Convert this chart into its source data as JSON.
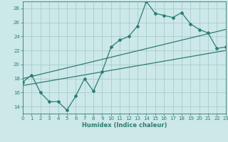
{
  "xlabel": "Humidex (Indice chaleur)",
  "xlim": [
    0,
    23
  ],
  "ylim": [
    13,
    29
  ],
  "yticks": [
    14,
    16,
    18,
    20,
    22,
    24,
    26,
    28
  ],
  "xticks": [
    0,
    1,
    2,
    3,
    4,
    5,
    6,
    7,
    8,
    9,
    10,
    11,
    12,
    13,
    14,
    15,
    16,
    17,
    18,
    19,
    20,
    21,
    22,
    23
  ],
  "bg_color": "#cce8e8",
  "grid_color": "#aacccc",
  "line_color": "#2d7d6e",
  "curve1_x": [
    0,
    1,
    2,
    3,
    4,
    5,
    6,
    7,
    8,
    9,
    10,
    11,
    12,
    13,
    14,
    15,
    16,
    17,
    18,
    19,
    20,
    21,
    22,
    23
  ],
  "curve1_y": [
    17.5,
    18.5,
    16.0,
    14.7,
    14.7,
    13.5,
    15.5,
    18.0,
    16.2,
    19.0,
    22.5,
    23.5,
    24.0,
    25.5,
    29.0,
    27.3,
    27.0,
    26.7,
    27.4,
    25.8,
    25.0,
    24.5,
    22.3,
    22.5
  ],
  "line2_x": [
    0,
    23
  ],
  "line2_y": [
    18.0,
    25.0
  ],
  "line3_x": [
    0,
    23
  ],
  "line3_y": [
    17.0,
    22.0
  ]
}
